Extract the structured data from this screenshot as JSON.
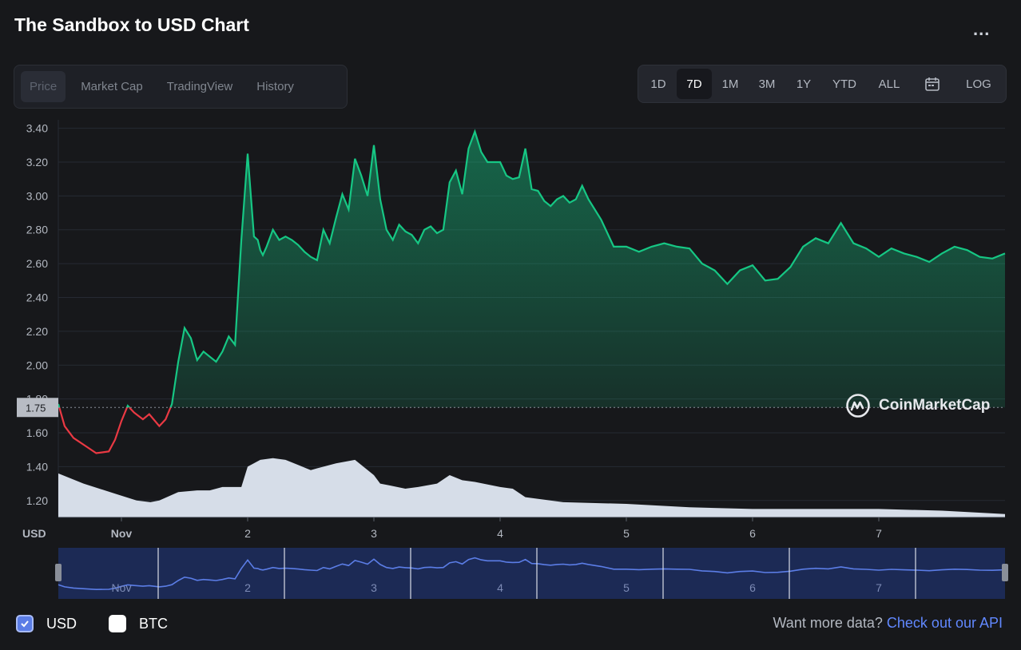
{
  "header": {
    "title": "The Sandbox to USD Chart",
    "more_label": "..."
  },
  "tabs": [
    {
      "label": "Price",
      "active": true
    },
    {
      "label": "Market Cap",
      "active": false
    },
    {
      "label": "TradingView",
      "active": false
    },
    {
      "label": "History",
      "active": false
    }
  ],
  "ranges": [
    {
      "label": "1D",
      "active": false
    },
    {
      "label": "7D",
      "active": true
    },
    {
      "label": "1M",
      "active": false
    },
    {
      "label": "3M",
      "active": false
    },
    {
      "label": "1Y",
      "active": false
    },
    {
      "label": "YTD",
      "active": false
    },
    {
      "label": "ALL",
      "active": false
    },
    {
      "label": "",
      "icon": "calendar-icon",
      "active": false
    },
    {
      "label": "LOG",
      "active": false
    }
  ],
  "watermark": {
    "text": "CoinMarketCap",
    "icon": "coinmarketcap-logo"
  },
  "legend": {
    "usd_label": "USD",
    "usd_checked": true,
    "btc_label": "BTC",
    "btc_checked": false
  },
  "footer": {
    "prompt": "Want more data?",
    "link": "Check out our API"
  },
  "colors": {
    "up": "#16c784",
    "down": "#ea3943",
    "volume": "#d6dde8",
    "navigator_line": "#5b7de6",
    "navigator_bg": "#1c2a55"
  },
  "chart_data": {
    "type": "area",
    "ylabel": "USD",
    "ylim": [
      1.1,
      3.45
    ],
    "y_ticks": [
      1.2,
      1.4,
      1.6,
      1.8,
      2.0,
      2.2,
      2.4,
      2.6,
      2.8,
      3.0,
      3.2,
      3.4
    ],
    "y_tick_labels": [
      "1.20",
      "1.40",
      "1.60",
      "1.80",
      "2.00",
      "2.20",
      "2.40",
      "2.60",
      "2.80",
      "3.00",
      "3.20",
      "3.40"
    ],
    "xlim": [
      0,
      7.5
    ],
    "x_ticks": [
      {
        "x": 0.5,
        "label": "Nov"
      },
      {
        "x": 1.5,
        "label": "2"
      },
      {
        "x": 2.5,
        "label": "3"
      },
      {
        "x": 3.5,
        "label": "4"
      },
      {
        "x": 4.5,
        "label": "5"
      },
      {
        "x": 5.5,
        "label": "6"
      },
      {
        "x": 6.5,
        "label": "7"
      }
    ],
    "reference_price": 1.75,
    "reference_label": "1.75",
    "price": {
      "x": [
        0,
        0.05,
        0.12,
        0.22,
        0.3,
        0.4,
        0.45,
        0.5,
        0.55,
        0.6,
        0.67,
        0.72,
        0.8,
        0.85,
        0.9,
        0.95,
        1.0,
        1.05,
        1.1,
        1.15,
        1.2,
        1.25,
        1.3,
        1.35,
        1.4,
        1.45,
        1.5,
        1.55,
        1.58,
        1.6,
        1.62,
        1.65,
        1.7,
        1.75,
        1.8,
        1.85,
        1.9,
        1.95,
        2.0,
        2.05,
        2.1,
        2.15,
        2.2,
        2.25,
        2.3,
        2.35,
        2.4,
        2.45,
        2.5,
        2.55,
        2.6,
        2.65,
        2.7,
        2.75,
        2.8,
        2.85,
        2.9,
        2.95,
        3.0,
        3.05,
        3.1,
        3.15,
        3.2,
        3.25,
        3.3,
        3.35,
        3.4,
        3.45,
        3.5,
        3.55,
        3.6,
        3.65,
        3.7,
        3.75,
        3.8,
        3.85,
        3.9,
        3.95,
        4.0,
        4.05,
        4.1,
        4.15,
        4.2,
        4.3,
        4.4,
        4.5,
        4.6,
        4.7,
        4.8,
        4.9,
        5.0,
        5.1,
        5.2,
        5.3,
        5.4,
        5.5,
        5.6,
        5.7,
        5.8,
        5.9,
        6.0,
        6.1,
        6.2,
        6.3,
        6.4,
        6.5,
        6.6,
        6.7,
        6.8,
        6.9,
        7.0,
        7.1,
        7.2,
        7.3,
        7.4,
        7.5
      ],
      "y": [
        1.77,
        1.64,
        1.57,
        1.52,
        1.48,
        1.49,
        1.56,
        1.67,
        1.76,
        1.72,
        1.68,
        1.71,
        1.64,
        1.68,
        1.77,
        2.02,
        2.22,
        2.16,
        2.03,
        2.08,
        2.05,
        2.02,
        2.08,
        2.17,
        2.12,
        2.74,
        3.25,
        2.76,
        2.74,
        2.68,
        2.65,
        2.7,
        2.8,
        2.74,
        2.76,
        2.74,
        2.71,
        2.67,
        2.64,
        2.62,
        2.8,
        2.72,
        2.87,
        3.01,
        2.92,
        3.22,
        3.12,
        3.0,
        3.3,
        2.98,
        2.8,
        2.74,
        2.83,
        2.79,
        2.77,
        2.72,
        2.8,
        2.82,
        2.78,
        2.8,
        3.08,
        3.15,
        3.01,
        3.28,
        3.38,
        3.26,
        3.2,
        3.2,
        3.2,
        3.12,
        3.1,
        3.11,
        3.28,
        3.04,
        3.03,
        2.97,
        2.94,
        2.98,
        3.0,
        2.96,
        2.98,
        3.06,
        2.98,
        2.86,
        2.7,
        2.7,
        2.67,
        2.7,
        2.72,
        2.7,
        2.69,
        2.6,
        2.56,
        2.48,
        2.56,
        2.59,
        2.5,
        2.51,
        2.58,
        2.7,
        2.75,
        2.72,
        2.84,
        2.72,
        2.69,
        2.64,
        2.69,
        2.66,
        2.64,
        2.61,
        2.66,
        2.7,
        2.68,
        2.64,
        2.63,
        2.66
      ]
    },
    "volume": {
      "x": [
        0,
        0.2,
        0.45,
        0.62,
        0.73,
        0.8,
        0.95,
        1.1,
        1.2,
        1.3,
        1.45,
        1.5,
        1.6,
        1.7,
        1.8,
        1.9,
        2.0,
        2.05,
        2.2,
        2.35,
        2.5,
        2.55,
        2.62,
        2.75,
        2.85,
        3.0,
        3.1,
        3.2,
        3.3,
        3.5,
        3.6,
        3.7,
        4.0,
        4.5,
        5.0,
        5.5,
        6.0,
        6.5,
        7.0,
        7.5
      ],
      "y": [
        1.36,
        1.3,
        1.24,
        1.2,
        1.19,
        1.2,
        1.25,
        1.26,
        1.26,
        1.28,
        1.28,
        1.4,
        1.44,
        1.45,
        1.44,
        1.41,
        1.38,
        1.39,
        1.42,
        1.44,
        1.35,
        1.3,
        1.29,
        1.27,
        1.28,
        1.3,
        1.35,
        1.32,
        1.31,
        1.28,
        1.27,
        1.22,
        1.19,
        1.18,
        1.16,
        1.15,
        1.15,
        1.15,
        1.14,
        1.12
      ]
    }
  }
}
